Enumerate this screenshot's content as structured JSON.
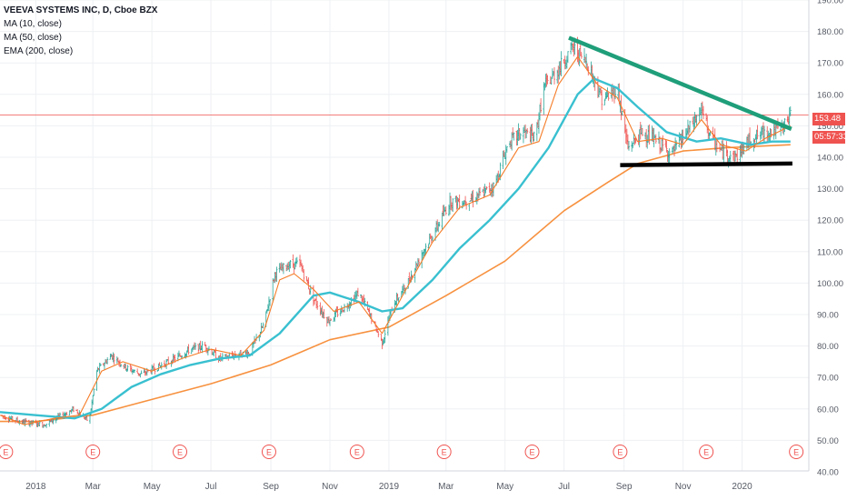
{
  "legend": {
    "symbol": "VEEVA SYSTEMS INC, D, Cboe BZX",
    "indicators": [
      "MA (10, close)",
      "MA (50, close)",
      "EMA (200, close)"
    ]
  },
  "price_label": "153.48",
  "countdown_label": "05:57:33",
  "earnings_marker": "E",
  "colors": {
    "ma10": "#f57c28",
    "ma50": "#39c0d0",
    "ema200": "#f7913f",
    "up": "#26a69a",
    "down": "#ef5350",
    "resistance_line": "#1f9e7a",
    "support_line": "#000000",
    "last_price": "#ef5350"
  },
  "chart_data": {
    "type": "candlestick",
    "title": "VEEVA SYSTEMS INC, D, Cboe BZX",
    "ylim": [
      40,
      190
    ],
    "y_ticks": [
      "190.00",
      "180.00",
      "170.00",
      "160.00",
      "150.00",
      "140.00",
      "130.00",
      "120.00",
      "110.00",
      "100.00",
      "90.00",
      "80.00",
      "70.00",
      "60.00",
      "50.00",
      "40.00"
    ],
    "x_ticks": [
      "2018",
      "Mar",
      "May",
      "Jul",
      "Sep",
      "Nov",
      "2019",
      "Mar",
      "May",
      "Jul",
      "Sep",
      "Nov",
      "2020"
    ],
    "x_tick_dates": [
      "2018-01-01",
      "2018-03-01",
      "2018-05-01",
      "2018-07-01",
      "2018-09-01",
      "2018-11-01",
      "2019-01-01",
      "2019-03-01",
      "2019-05-01",
      "2019-07-01",
      "2019-09-01",
      "2019-11-01",
      "2020-01-01"
    ],
    "x_range": [
      "2017-11-25",
      "2020-03-10"
    ],
    "last_price": 153.48,
    "earnings_dates": [
      "2017-12-01",
      "2018-03-01",
      "2018-05-30",
      "2018-08-30",
      "2018-11-29",
      "2019-02-27",
      "2019-05-29",
      "2019-08-28",
      "2019-11-25",
      "2020-02-26"
    ],
    "price_path": [
      [
        "2017-11-25",
        58
      ],
      [
        "2017-12-15",
        56
      ],
      [
        "2018-01-10",
        55
      ],
      [
        "2018-02-10",
        60
      ],
      [
        "2018-02-25",
        56
      ],
      [
        "2018-03-05",
        72
      ],
      [
        "2018-03-20",
        77
      ],
      [
        "2018-04-05",
        73
      ],
      [
        "2018-04-20",
        71
      ],
      [
        "2018-05-05",
        73
      ],
      [
        "2018-05-25",
        76
      ],
      [
        "2018-06-10",
        79
      ],
      [
        "2018-06-25",
        80
      ],
      [
        "2018-07-10",
        76
      ],
      [
        "2018-07-25",
        77
      ],
      [
        "2018-08-10",
        78
      ],
      [
        "2018-08-25",
        87
      ],
      [
        "2018-09-05",
        103
      ],
      [
        "2018-09-20",
        106
      ],
      [
        "2018-10-01",
        106
      ],
      [
        "2018-10-15",
        95
      ],
      [
        "2018-10-30",
        88
      ],
      [
        "2018-11-15",
        92
      ],
      [
        "2018-12-01",
        97
      ],
      [
        "2018-12-15",
        88
      ],
      [
        "2018-12-25",
        81
      ],
      [
        "2019-01-05",
        93
      ],
      [
        "2019-01-20",
        100
      ],
      [
        "2019-02-05",
        110
      ],
      [
        "2019-02-20",
        118
      ],
      [
        "2019-03-05",
        126
      ],
      [
        "2019-03-20",
        126
      ],
      [
        "2019-04-05",
        128
      ],
      [
        "2019-04-20",
        131
      ],
      [
        "2019-05-05",
        145
      ],
      [
        "2019-05-20",
        148
      ],
      [
        "2019-06-01",
        146
      ],
      [
        "2019-06-10",
        162
      ],
      [
        "2019-06-25",
        168
      ],
      [
        "2019-07-10",
        175
      ],
      [
        "2019-07-25",
        170
      ],
      [
        "2019-08-10",
        158
      ],
      [
        "2019-08-25",
        162
      ],
      [
        "2019-09-05",
        143
      ],
      [
        "2019-09-20",
        148
      ],
      [
        "2019-10-05",
        145
      ],
      [
        "2019-10-20",
        141
      ],
      [
        "2019-11-05",
        148
      ],
      [
        "2019-11-20",
        155
      ],
      [
        "2019-11-30",
        146
      ],
      [
        "2019-12-10",
        142
      ],
      [
        "2019-12-25",
        140
      ],
      [
        "2020-01-10",
        146
      ],
      [
        "2020-01-25",
        148
      ],
      [
        "2020-02-10",
        149
      ],
      [
        "2020-02-20",
        153
      ]
    ],
    "series": [
      {
        "name": "MA (10, close)",
        "points": [
          [
            "2017-11-25",
            58
          ],
          [
            "2017-12-20",
            55
          ],
          [
            "2018-01-20",
            57
          ],
          [
            "2018-02-15",
            58
          ],
          [
            "2018-03-10",
            72
          ],
          [
            "2018-04-01",
            75
          ],
          [
            "2018-05-01",
            72
          ],
          [
            "2018-06-01",
            76
          ],
          [
            "2018-07-01",
            79
          ],
          [
            "2018-08-01",
            77
          ],
          [
            "2018-08-25",
            85
          ],
          [
            "2018-09-10",
            101
          ],
          [
            "2018-09-25",
            103
          ],
          [
            "2018-10-15",
            98
          ],
          [
            "2018-11-05",
            91
          ],
          [
            "2018-12-01",
            94
          ],
          [
            "2018-12-25",
            84
          ],
          [
            "2019-01-15",
            96
          ],
          [
            "2019-02-15",
            113
          ],
          [
            "2019-03-15",
            124
          ],
          [
            "2019-04-15",
            128
          ],
          [
            "2019-05-15",
            143
          ],
          [
            "2019-06-05",
            145
          ],
          [
            "2019-06-25",
            163
          ],
          [
            "2019-07-15",
            172
          ],
          [
            "2019-08-05",
            163
          ],
          [
            "2019-08-25",
            159
          ],
          [
            "2019-09-15",
            145
          ],
          [
            "2019-10-10",
            146
          ],
          [
            "2019-11-01",
            144
          ],
          [
            "2019-11-20",
            152
          ],
          [
            "2019-12-10",
            144
          ],
          [
            "2020-01-05",
            142
          ],
          [
            "2020-01-25",
            146
          ],
          [
            "2020-02-20",
            150
          ]
        ]
      },
      {
        "name": "MA (50, close)",
        "points": [
          [
            "2017-11-25",
            59
          ],
          [
            "2018-01-01",
            58
          ],
          [
            "2018-02-10",
            57
          ],
          [
            "2018-03-10",
            60
          ],
          [
            "2018-04-10",
            67
          ],
          [
            "2018-05-10",
            71
          ],
          [
            "2018-06-10",
            74
          ],
          [
            "2018-07-10",
            76
          ],
          [
            "2018-08-10",
            77
          ],
          [
            "2018-09-10",
            84
          ],
          [
            "2018-10-15",
            96
          ],
          [
            "2018-11-01",
            97
          ],
          [
            "2018-12-01",
            94
          ],
          [
            "2018-12-25",
            91
          ],
          [
            "2019-01-15",
            92
          ],
          [
            "2019-02-15",
            101
          ],
          [
            "2019-03-15",
            111
          ],
          [
            "2019-04-15",
            120
          ],
          [
            "2019-05-15",
            130
          ],
          [
            "2019-06-15",
            143
          ],
          [
            "2019-07-15",
            160
          ],
          [
            "2019-08-01",
            165
          ],
          [
            "2019-08-25",
            162
          ],
          [
            "2019-09-15",
            156
          ],
          [
            "2019-10-15",
            148
          ],
          [
            "2019-11-15",
            145
          ],
          [
            "2019-12-10",
            146
          ],
          [
            "2020-01-10",
            144
          ],
          [
            "2020-02-01",
            145
          ],
          [
            "2020-02-20",
            145
          ]
        ]
      },
      {
        "name": "EMA (200, close)",
        "points": [
          [
            "2017-11-25",
            56
          ],
          [
            "2018-01-01",
            56
          ],
          [
            "2018-03-01",
            58
          ],
          [
            "2018-05-01",
            63
          ],
          [
            "2018-07-01",
            68
          ],
          [
            "2018-09-01",
            74
          ],
          [
            "2018-11-01",
            82
          ],
          [
            "2019-01-01",
            86
          ],
          [
            "2019-03-01",
            96
          ],
          [
            "2019-05-01",
            107
          ],
          [
            "2019-07-01",
            123
          ],
          [
            "2019-08-15",
            132
          ],
          [
            "2019-09-15",
            138
          ],
          [
            "2019-11-01",
            142
          ],
          [
            "2019-12-15",
            143
          ],
          [
            "2020-02-20",
            144
          ]
        ]
      }
    ],
    "annotations": [
      {
        "type": "trendline",
        "label": "resistance",
        "from": [
          "2019-07-06",
          178
        ],
        "to": [
          "2020-02-21",
          149
        ]
      },
      {
        "type": "trendline",
        "label": "support",
        "from": [
          "2019-08-28",
          137.5
        ],
        "to": [
          "2020-02-22",
          138
        ]
      }
    ]
  }
}
